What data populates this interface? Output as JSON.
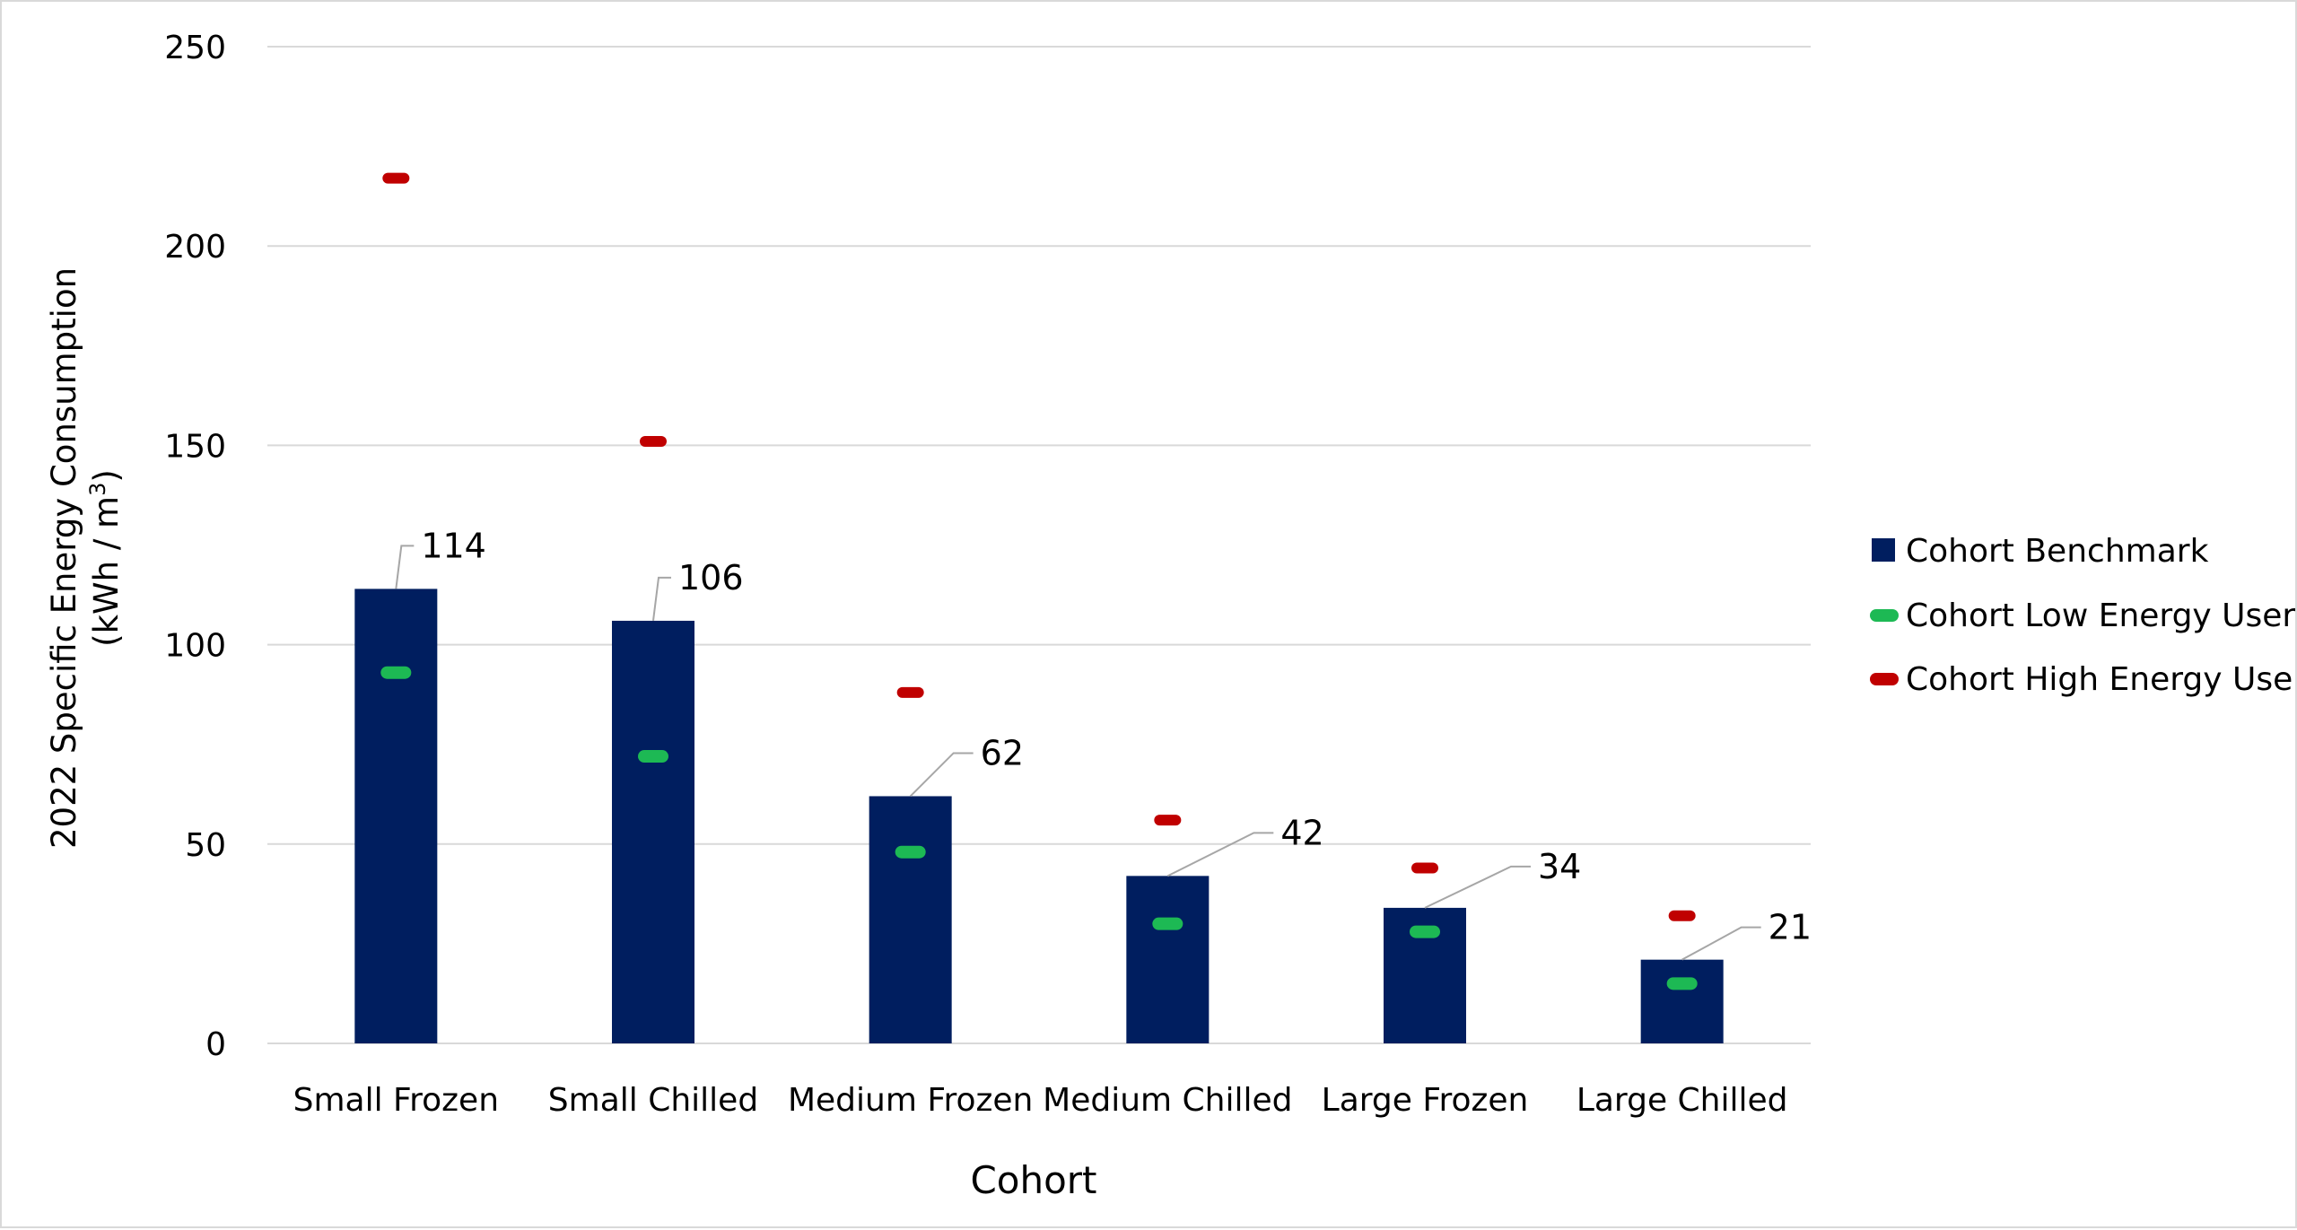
{
  "chart_data": {
    "type": "bar",
    "categories": [
      "Small Frozen",
      "Small Chilled",
      "Medium Frozen",
      "Medium Chilled",
      "Large Frozen",
      "Large Chilled"
    ],
    "series": [
      {
        "name": "Cohort Benchmark",
        "kind": "bar",
        "values": [
          114,
          106,
          62,
          42,
          34,
          21
        ],
        "data_labels": [
          "114",
          "106",
          "62",
          "42",
          "34",
          "21"
        ],
        "color": "#001e5f"
      },
      {
        "name": "Cohort Low Energy User",
        "kind": "marker",
        "values": [
          93,
          72,
          48,
          30,
          28,
          15
        ],
        "color": "#1db954"
      },
      {
        "name": "Cohort High Energy User",
        "kind": "marker",
        "values": [
          217,
          151,
          88,
          56,
          44,
          32
        ],
        "color": "#c00000"
      }
    ],
    "xlabel": "Cohort",
    "ylabel_line1": "2022 Specific Energy Consumption",
    "ylabel_line2_prefix": "(kWh / m",
    "ylabel_line2_sup": "3",
    "ylabel_line2_suffix": ")",
    "ylim": [
      0,
      250
    ],
    "yticks": [
      "0",
      "50",
      "100",
      "150",
      "200",
      "250"
    ],
    "grid": true,
    "legend_position": "right",
    "gridline_color": "#d9d9d9"
  }
}
